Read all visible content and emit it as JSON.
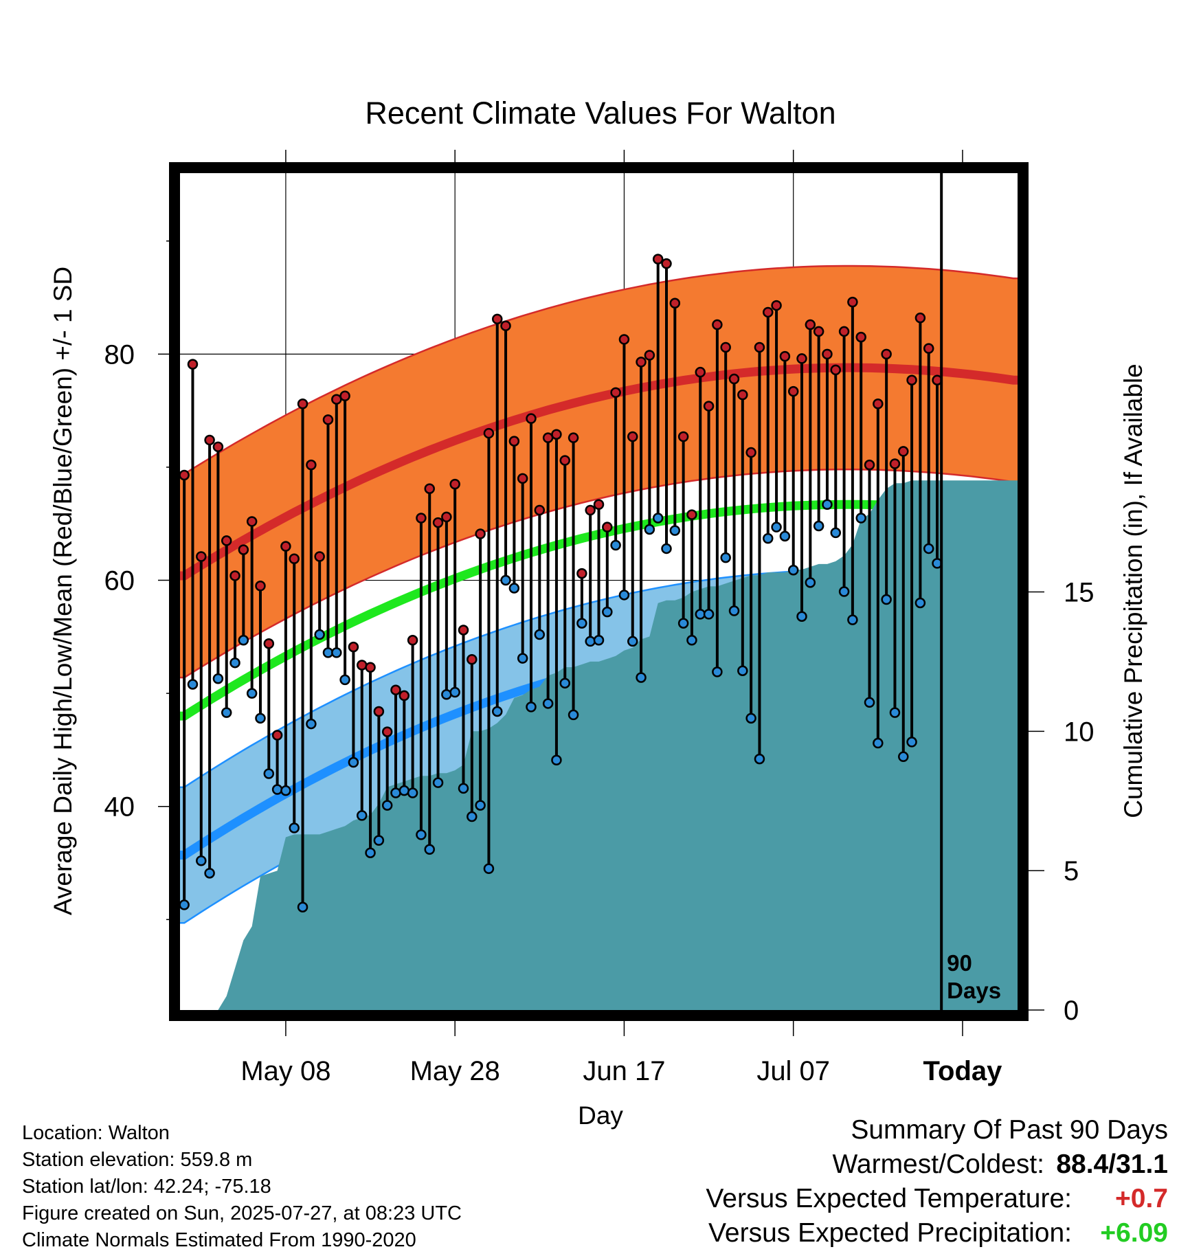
{
  "chart_data": {
    "type": "line",
    "title": "Recent Climate Values For Walton",
    "xlabel": "Day",
    "ylabel": "Average Daily High/Low/Mean (Red/Blue/Green) +/- 1 SD",
    "y2label": "Cumulative Precipitation (in), If Available",
    "ylim": [
      22,
      96
    ],
    "y2lim": [
      0,
      30
    ],
    "yticks": [
      "40",
      "60",
      "80"
    ],
    "y2ticks": [
      "0",
      "5",
      "10",
      "15"
    ],
    "xticks": [
      "May 08",
      "May 28",
      "Jun 17",
      "Jul 07",
      "Today"
    ],
    "annotation": "90 Days",
    "days": 90,
    "extend_days": 9,
    "highs": [
      69.3,
      79.1,
      62.1,
      72.4,
      71.8,
      63.5,
      60.4,
      62.7,
      65.2,
      59.5,
      54.4,
      46.3,
      63.0,
      61.9,
      75.6,
      70.2,
      62.1,
      74.2,
      76.0,
      76.3,
      54.1,
      52.5,
      52.3,
      48.4,
      46.6,
      50.3,
      49.8,
      54.7,
      65.5,
      68.1,
      65.1,
      65.6,
      68.5,
      55.6,
      53.0,
      64.1,
      73.0,
      83.1,
      82.5,
      72.3,
      69.0,
      74.3,
      66.2,
      72.6,
      72.9,
      70.6,
      72.6,
      60.6,
      66.2,
      66.7,
      64.7,
      76.6,
      81.3,
      72.7,
      79.3,
      79.9,
      88.4,
      88.0,
      84.5,
      72.7,
      65.8,
      78.4,
      75.4,
      82.6,
      80.6,
      77.8,
      76.4,
      71.3,
      80.6,
      83.7,
      84.3,
      79.8,
      76.7,
      79.6,
      82.6,
      82.0,
      80.0,
      78.6,
      82.0,
      84.6,
      81.5,
      70.2,
      75.6,
      80.0,
      70.3,
      71.4,
      77.7,
      83.2,
      80.5,
      77.7
    ],
    "lows": [
      31.3,
      50.8,
      35.2,
      34.1,
      51.3,
      48.3,
      52.7,
      54.7,
      50.0,
      47.8,
      42.9,
      41.5,
      41.4,
      38.1,
      31.1,
      47.3,
      55.2,
      53.6,
      53.6,
      51.2,
      43.9,
      39.2,
      35.9,
      37.0,
      40.1,
      41.2,
      41.4,
      41.2,
      37.5,
      36.2,
      42.1,
      49.9,
      50.1,
      41.6,
      39.1,
      40.1,
      34.5,
      48.4,
      60.0,
      59.3,
      53.1,
      48.8,
      55.2,
      49.1,
      44.1,
      50.9,
      48.1,
      56.2,
      54.6,
      54.7,
      57.2,
      63.1,
      58.7,
      54.6,
      51.4,
      64.5,
      65.5,
      62.8,
      64.4,
      56.2,
      54.7,
      57.0,
      57.0,
      51.9,
      62.0,
      57.3,
      52.0,
      47.8,
      44.2,
      63.7,
      64.7,
      63.9,
      60.9,
      56.8,
      59.8,
      64.8,
      66.7,
      64.2,
      59.0,
      56.5,
      65.5,
      49.2,
      45.6,
      58.3,
      48.3,
      44.4,
      45.7,
      58.0,
      62.8,
      61.5
    ],
    "precip": [
      0,
      0,
      0,
      0,
      0,
      0.5,
      1.5,
      2.5,
      3,
      4.8,
      4.9,
      5,
      6.2,
      6.3,
      6.3,
      6.3,
      6.3,
      6.4,
      6.5,
      6.6,
      6.8,
      6.9,
      7.0,
      7.4,
      8.0,
      8.1,
      8.2,
      8.3,
      8.4,
      8.4,
      8.5,
      8.5,
      8.6,
      8.8,
      10.0,
      10.0,
      10.1,
      10.3,
      10.6,
      11.2,
      11.3,
      11.5,
      11.6,
      12.0,
      12.1,
      12.3,
      12.3,
      12.4,
      12.5,
      12.5,
      12.6,
      12.7,
      12.9,
      13.0,
      13.3,
      13.4,
      14.6,
      14.7,
      14.7,
      14.8,
      15.0,
      15.1,
      15.2,
      15.2,
      15.3,
      15.4,
      15.5,
      15.6,
      15.6,
      15.7,
      15.7,
      15.7,
      15.8,
      15.8,
      15.9,
      16.0,
      16.0,
      16.1,
      16.3,
      16.7,
      17.6,
      17.8,
      18.3,
      18.7,
      18.9,
      18.9,
      19.0,
      19.0,
      19.0,
      19.0
    ],
    "normal_high": {
      "start": 60.4,
      "peak": 78.8,
      "end": 77.7
    },
    "normal_low": {
      "start": 35.7,
      "peak": 54.9,
      "end": 54.3
    },
    "normal_mean": {
      "start": 48.0,
      "peak": 66.7,
      "end": 65.9
    },
    "sd_high": 9.0,
    "sd_low": 6.0,
    "colors": {
      "high_band": "#f47a30",
      "high_line": "#d42a2a",
      "low_band": "#85c3e8",
      "low_line": "#1e90ff",
      "mean_line": "#1ee81e",
      "precip": "#4b9ba6",
      "high_dot": "#c0202a",
      "low_dot": "#2a8ad8"
    }
  },
  "footer": {
    "location": "Location: Walton",
    "elevation": "Station elevation: 559.8 m",
    "latlon": "Station lat/lon: 42.24; -75.18",
    "created": "Figure created on Sun, 2025-07-27, at 08:23 UTC",
    "normals": "Climate Normals Estimated From 1990-2020"
  },
  "summary": {
    "heading": "Summary Of Past 90 Days",
    "warm_cold_label": "Warmest/Coldest:",
    "warm_cold_value": "88.4/31.1",
    "temp_label": "Versus Expected Temperature:",
    "temp_value": "+0.7",
    "temp_color": "#d42a2a",
    "precip_label": "Versus Expected Precipitation:",
    "precip_value": "+6.09",
    "precip_color": "#22cc22"
  }
}
